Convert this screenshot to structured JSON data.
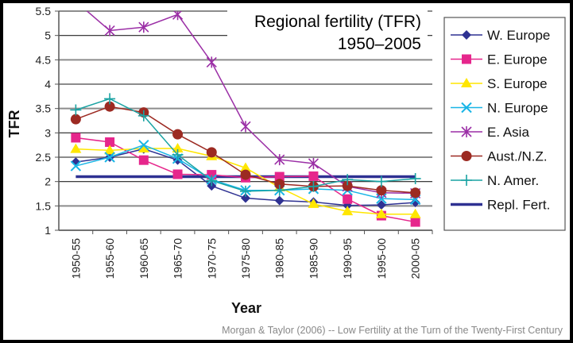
{
  "chart_data": {
    "type": "line",
    "title": "Regional fertility (TFR)",
    "subtitle": "1950–2005",
    "xlabel": "Year",
    "ylabel": "TFR",
    "ylim": [
      1,
      5.5
    ],
    "yticks": [
      "1",
      "1.5",
      "2",
      "2.5",
      "3",
      "3.5",
      "4",
      "4.5",
      "5",
      "5.5"
    ],
    "ytick_values": [
      1,
      1.5,
      2,
      2.5,
      3,
      3.5,
      4,
      4.5,
      5,
      5.5
    ],
    "grid": true,
    "legend_position": "right",
    "categories": [
      "1950-55",
      "1955-60",
      "1960-65",
      "1965-70",
      "1970-75",
      "1975-80",
      "1980-85",
      "1985-90",
      "1990-95",
      "1995-00",
      "2000-05"
    ],
    "series": [
      {
        "name": "W. Europe",
        "color": "#2e3192",
        "marker": "diamond",
        "values": [
          2.4,
          2.5,
          2.67,
          2.44,
          1.91,
          1.66,
          1.61,
          1.58,
          1.51,
          1.52,
          1.57
        ]
      },
      {
        "name": "E. Europe",
        "color": "#e6268c",
        "marker": "square",
        "values": [
          2.9,
          2.81,
          2.44,
          2.15,
          2.14,
          2.08,
          2.1,
          2.11,
          1.64,
          1.3,
          1.17
        ]
      },
      {
        "name": "S. Europe",
        "color": "#ffe600",
        "marker": "triangle",
        "values": [
          2.67,
          2.64,
          2.68,
          2.68,
          2.52,
          2.28,
          1.88,
          1.54,
          1.39,
          1.33,
          1.33
        ]
      },
      {
        "name": "N. Europe",
        "color": "#19b5e6",
        "marker": "x",
        "values": [
          2.32,
          2.5,
          2.75,
          2.47,
          2.04,
          1.82,
          1.82,
          1.85,
          1.82,
          1.65,
          1.63
        ]
      },
      {
        "name": "E. Asia",
        "color": "#9b2fa6",
        "marker": "star",
        "values": [
          5.7,
          5.1,
          5.17,
          5.43,
          4.45,
          3.13,
          2.45,
          2.37,
          1.9,
          1.77,
          1.76
        ]
      },
      {
        "name": "Aust./N.Z.",
        "color": "#9c2a22",
        "marker": "circle",
        "values": [
          3.28,
          3.54,
          3.42,
          2.97,
          2.6,
          2.14,
          1.95,
          1.9,
          1.91,
          1.82,
          1.77
        ]
      },
      {
        "name": "N. Amer.",
        "color": "#1aa3a3",
        "marker": "plus",
        "values": [
          3.47,
          3.7,
          3.35,
          2.55,
          2.02,
          1.8,
          1.82,
          1.9,
          2.04,
          2.0,
          2.06
        ]
      },
      {
        "name": "Repl. Fert.",
        "color": "#2e3192",
        "marker": "none",
        "values": [
          2.1,
          2.1,
          2.1,
          2.1,
          2.1,
          2.1,
          2.1,
          2.1,
          2.1,
          2.1,
          2.1
        ]
      }
    ],
    "source_note": "Morgan & Taylor (2006) -- Low Fertility at the Turn of the Twenty-First Century"
  }
}
